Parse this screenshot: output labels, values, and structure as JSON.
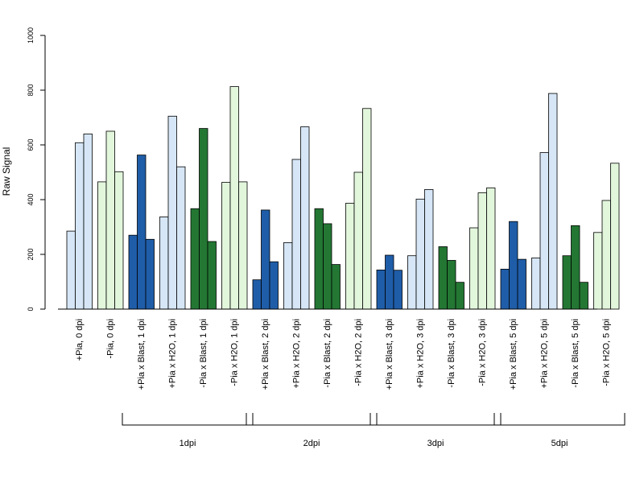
{
  "chart_data": {
    "type": "bar",
    "title": "",
    "ylabel": "Raw Signal",
    "xlabel": "",
    "ylim": [
      0,
      1000
    ],
    "yticks": [
      0,
      200,
      400,
      600,
      800,
      1000
    ],
    "colors": {
      "plus_blast": "#1f5da8",
      "plus_h2o": "#d6e6f6",
      "minus_blast": "#237733",
      "minus_h2o": "#e2f6dc",
      "outline": "#000000"
    },
    "groups": [
      {
        "label": "+Pia, 0 dpi",
        "color": "plus_h2o",
        "values": [
          285,
          608,
          640
        ]
      },
      {
        "label": "-Pia, 0 dpi",
        "color": "minus_h2o",
        "values": [
          465,
          650,
          502
        ]
      },
      {
        "label": "+Pia x Blast, 1 dpi",
        "color": "plus_blast",
        "values": [
          270,
          563,
          255
        ]
      },
      {
        "label": "+Pia x H2O, 1 dpi",
        "color": "plus_h2o",
        "values": [
          337,
          705,
          520
        ]
      },
      {
        "label": "-Pia x Blast, 1 dpi",
        "color": "minus_blast",
        "values": [
          367,
          660,
          247
        ]
      },
      {
        "label": "-Pia x H2O, 1 dpi",
        "color": "minus_h2o",
        "values": [
          463,
          813,
          465
        ]
      },
      {
        "label": "+Pia x Blast, 2 dpi",
        "color": "plus_blast",
        "values": [
          107,
          362,
          173
        ]
      },
      {
        "label": "+Pia x H2O, 2 dpi",
        "color": "plus_h2o",
        "values": [
          243,
          547,
          666
        ]
      },
      {
        "label": "-Pia x Blast, 2 dpi",
        "color": "minus_blast",
        "values": [
          367,
          312,
          163
        ]
      },
      {
        "label": "-Pia x H2O, 2 dpi",
        "color": "minus_h2o",
        "values": [
          387,
          500,
          733
        ]
      },
      {
        "label": "+Pia x Blast, 3 dpi",
        "color": "plus_blast",
        "values": [
          143,
          197,
          142
        ]
      },
      {
        "label": "+Pia x H2O, 3 dpi",
        "color": "plus_h2o",
        "values": [
          195,
          402,
          437
        ]
      },
      {
        "label": "-Pia x Blast, 3 dpi",
        "color": "minus_blast",
        "values": [
          228,
          178,
          98
        ]
      },
      {
        "label": "-Pia x H2O, 3 dpi",
        "color": "minus_h2o",
        "values": [
          297,
          425,
          443
        ]
      },
      {
        "label": "+Pia x Blast, 5 dpi",
        "color": "plus_blast",
        "values": [
          146,
          320,
          182
        ]
      },
      {
        "label": "+Pia x H2O, 5 dpi",
        "color": "plus_h2o",
        "values": [
          187,
          572,
          788
        ]
      },
      {
        "label": "-Pia x Blast, 5 dpi",
        "color": "minus_blast",
        "values": [
          195,
          305,
          98
        ]
      },
      {
        "label": "-Pia x H2O, 5 dpi",
        "color": "minus_h2o",
        "values": [
          280,
          397,
          533
        ]
      }
    ],
    "brackets": [
      {
        "label": "1dpi",
        "from_group": 2,
        "to_group": 5
      },
      {
        "label": "2dpi",
        "from_group": 6,
        "to_group": 9
      },
      {
        "label": "3dpi",
        "from_group": 10,
        "to_group": 13
      },
      {
        "label": "5dpi",
        "from_group": 14,
        "to_group": 17
      }
    ],
    "grid": false,
    "legend": "none"
  }
}
